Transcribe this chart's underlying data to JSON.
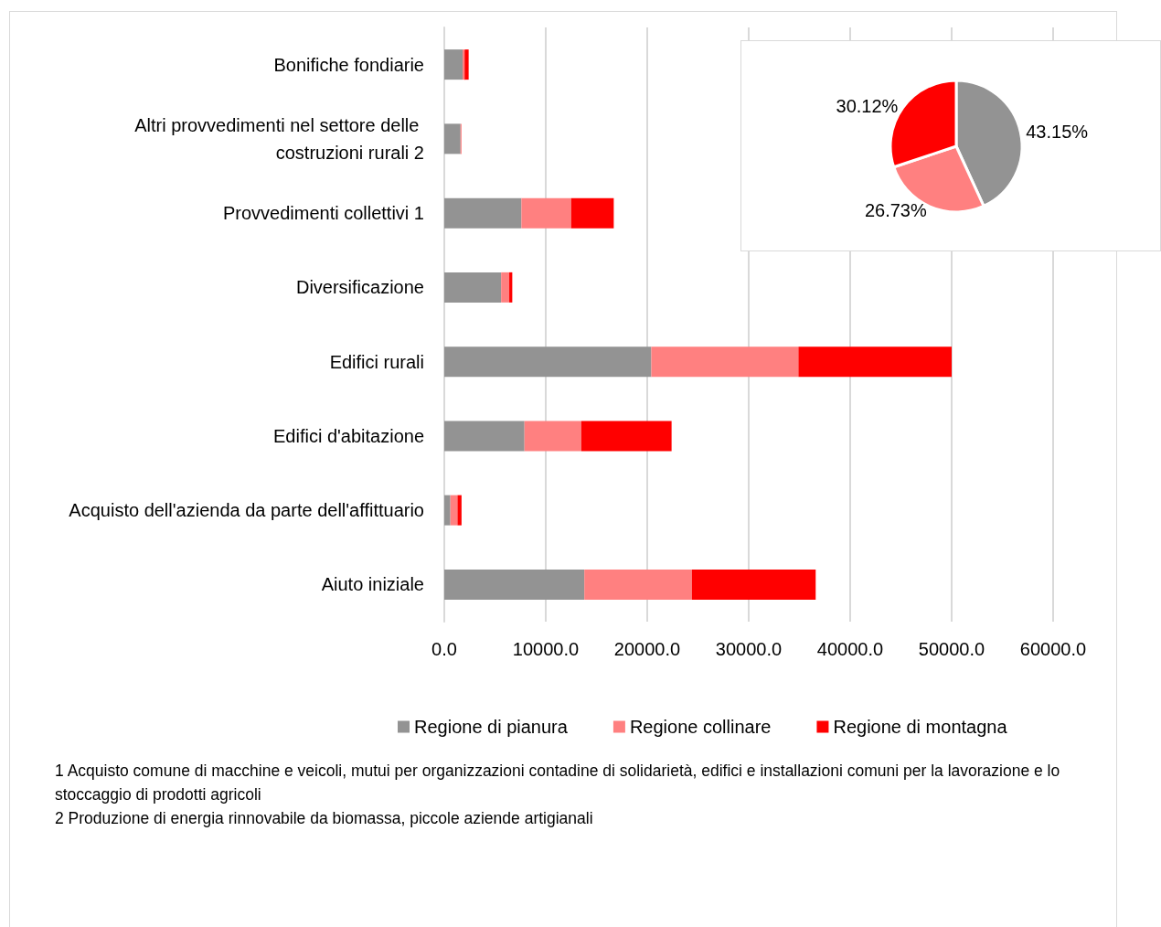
{
  "chart_data": [
    {
      "type": "bar",
      "orientation": "horizontal",
      "stacked": true,
      "categories": [
        "Bonifiche fondiarie",
        "Altri provvedimenti nel settore delle costruzioni rurali 2",
        "Provvedimenti collettivi 1",
        "Diversificazione",
        "Edifici rurali",
        "Edifici d'abitazione",
        "Acquisto dell'azienda da parte dell'affittuario",
        "Aiuto iniziale"
      ],
      "series": [
        {
          "name": "Regione di pianura",
          "color": "#939393",
          "values": [
            1800,
            1600,
            7600,
            5600,
            20400,
            7900,
            600,
            13800
          ]
        },
        {
          "name": "Regione collinare",
          "color": "#ff8080",
          "values": [
            200,
            100,
            4900,
            800,
            14500,
            5600,
            700,
            10600
          ]
        },
        {
          "name": "Regione di montagna",
          "color": "#ff0000",
          "values": [
            400,
            0,
            4200,
            300,
            15100,
            8900,
            400,
            12200
          ]
        }
      ],
      "xlim": [
        0,
        60000
      ],
      "xticks": [
        {
          "value": 0,
          "label": "0.0"
        },
        {
          "value": 10000,
          "label": "10000.0"
        },
        {
          "value": 20000,
          "label": "20000.0"
        },
        {
          "value": 30000,
          "label": "30000.0"
        },
        {
          "value": 40000,
          "label": "40000.0"
        },
        {
          "value": 50000,
          "label": "50000.0"
        },
        {
          "value": 60000,
          "label": "60000.0"
        }
      ],
      "grid": "x",
      "legend": "bottom",
      "annotations": [
        "1 Acquisto comune di macchine e veicoli, mutui per organizzazioni contadine di solidarietà, edifici e installazioni comuni per la lavorazione e lo stoccaggio di prodotti agricoli",
        "2 Produzione di energia rinnovabile da biomassa, piccole aziende artigianali"
      ]
    },
    {
      "type": "pie",
      "categories": [
        null,
        null,
        null
      ],
      "values": [
        43.15,
        26.73,
        30.12
      ],
      "colors": [
        "#939393",
        "#ff8080",
        "#ff0000"
      ],
      "value_labels": [
        "43.15%",
        "26.73%",
        "30.12%"
      ]
    }
  ]
}
